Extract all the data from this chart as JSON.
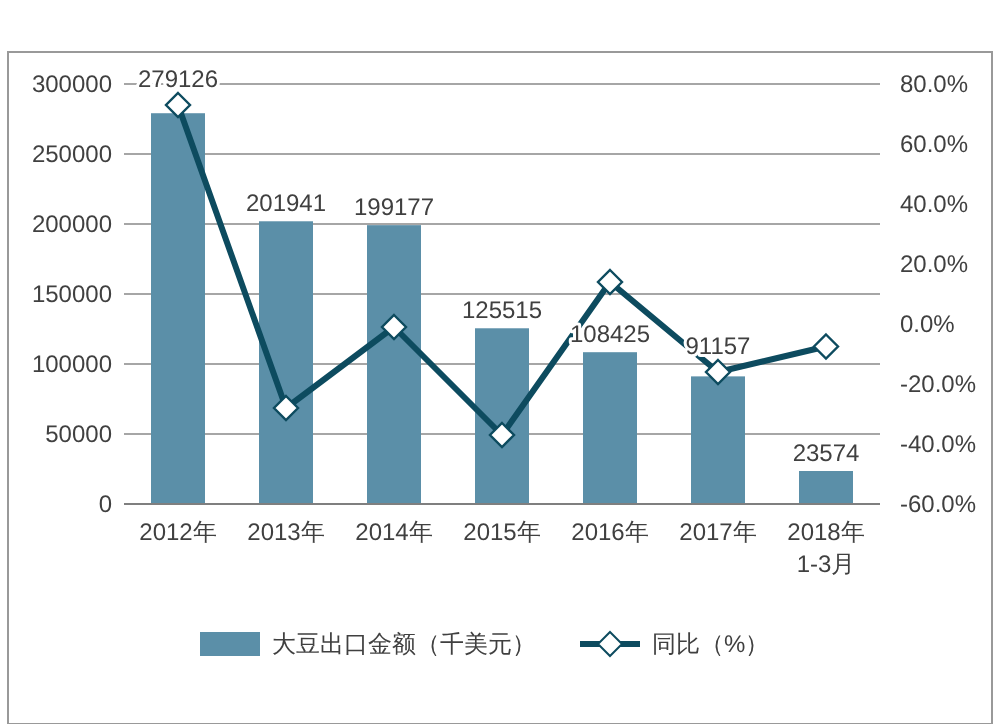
{
  "chart_data": {
    "type": "bar",
    "categories": [
      "2012年",
      "2013年",
      "2014年",
      "2015年",
      "2016年",
      "2017年",
      "2018年\n1-3月"
    ],
    "series": [
      {
        "name": "大豆出口金额（千美元）",
        "color": "#5b8fa8",
        "values": [
          279126,
          201941,
          199177,
          125515,
          108425,
          91157,
          23574
        ],
        "data_labels": true
      },
      {
        "name": "同比（%）",
        "type": "line",
        "axis": "y2",
        "color": "#0d4b5f",
        "values": [
          73,
          -28,
          -1,
          -37,
          14,
          -16,
          -7.5
        ],
        "marker": "diamond"
      }
    ],
    "ylim": [
      0,
      300000
    ],
    "yticks": [
      0,
      50000,
      100000,
      150000,
      200000,
      250000,
      300000
    ],
    "y2lim": [
      -60,
      80
    ],
    "y2ticks": [
      {
        "value": -60,
        "label": "-60.0%"
      },
      {
        "value": -40,
        "label": "-40.0%"
      },
      {
        "value": -20,
        "label": "-20.0%"
      },
      {
        "value": 0,
        "label": "0.0%"
      },
      {
        "value": 20,
        "label": "20.0%"
      },
      {
        "value": 40,
        "label": "40.0%"
      },
      {
        "value": 60,
        "label": "60.0%"
      },
      {
        "value": 80,
        "label": "80.0%"
      }
    ],
    "grid": "y",
    "legend": "bottom"
  }
}
